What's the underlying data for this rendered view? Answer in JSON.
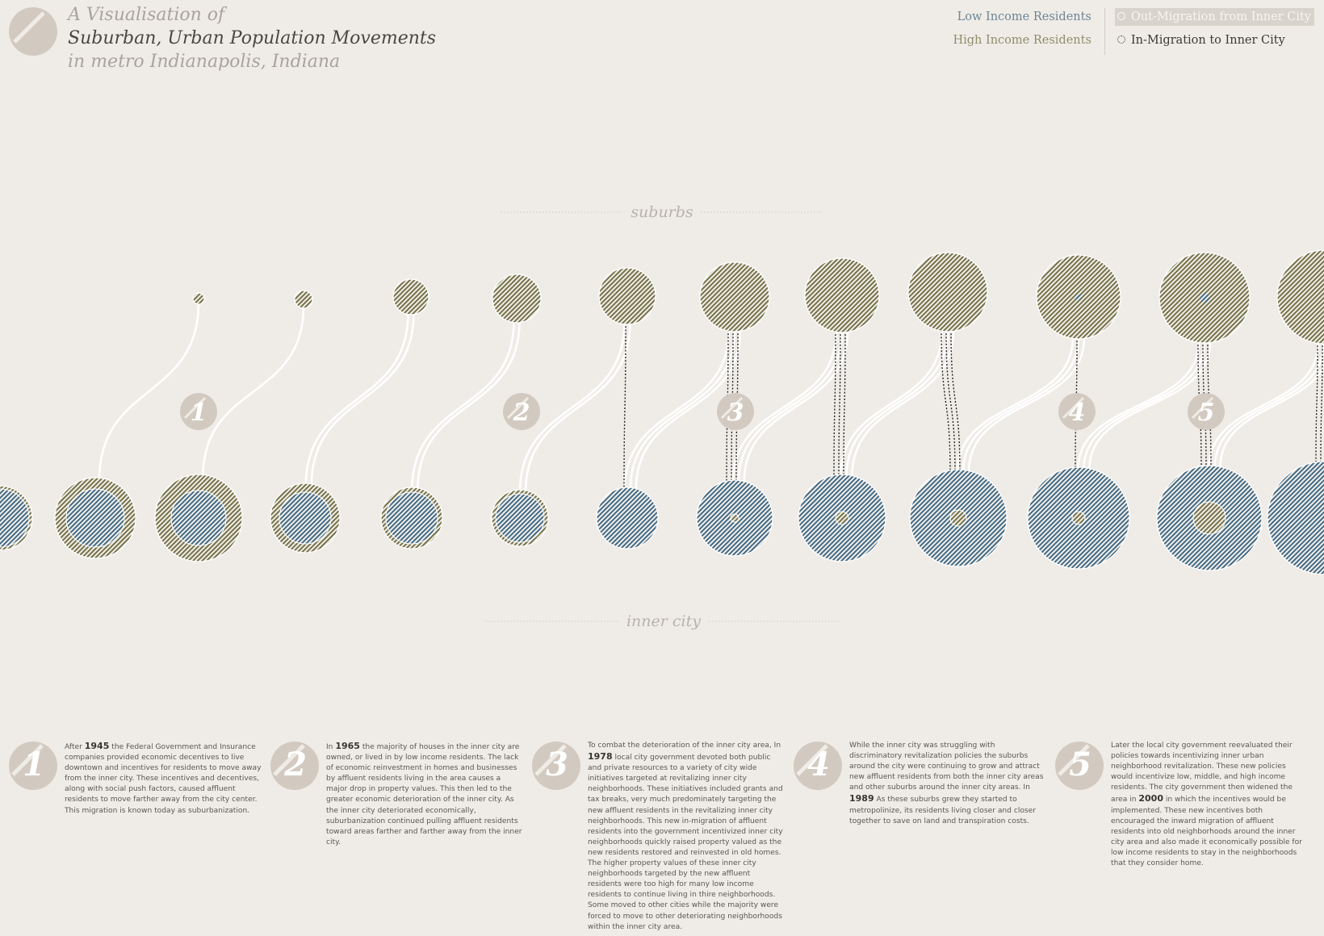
{
  "header": {
    "title_line1": "A Visualisation of",
    "title_line2": "Suburban, Urban Population Movements",
    "title_line3": "in metro Indianapolis, Indiana",
    "logo_icon": "circle-slash-logo"
  },
  "legend": {
    "low_income": "Low Income Residents",
    "high_income": "High Income Residents",
    "out_migration": "Out-Migration from Inner City",
    "in_migration": "In-Migration to Inner City",
    "low_income_color": "#4e6f86",
    "high_income_color": "#77744e",
    "out_migration_style": "solid-white",
    "in_migration_style": "dotted-black"
  },
  "diagram": {
    "top_label": "suburbs",
    "bottom_label": "inner city",
    "step_markers": [
      "1",
      "2",
      "3",
      "4",
      "5"
    ]
  },
  "steps": [
    {
      "number": "1",
      "pre": "After ",
      "year": "1945",
      "post": " the Federal Government and Insurance companies provided economic decentives to live downtown and incentives for residents to move away from the inner city. These incentives and decentives, along with social push factors, caused affluent residents to move farther away from the city center. This migration is known today as suburbanization."
    },
    {
      "number": "2",
      "pre": "In ",
      "year": "1965",
      "post": " the majority of houses in the inner city are owned, or lived in by low income residents. The lack of economic reinvestment in homes and businesses by affluent residents living in the area causes a major drop in property values. This then led to the greater economic deterioration of the inner city. As the inner city deteriorated economically, suburbanization continued pulling affluent residents toward areas farther and farther away from the inner city."
    },
    {
      "number": "3",
      "pre": "To combat the deterioration of the inner city area, In ",
      "year": "1978",
      "post": " local city government devoted both public and private resources to a variety of city wide initiatives targeted at revitalizing inner city neighborhoods. These initiatives included grants and tax breaks, very much predominately targeting the new affluent residents in the revitalizing inner city neighborhoods. This new in-migration of affluent residents into the government incentivized inner city neighborhoods quickly raised property valued as the new residents restored and reinvested in old homes. The higher property values of these inner city neighborhoods targeted by the new affluent residents were too high for many low income residents to continue living in thire neighborhoods. Some moved to other cities while the majority were forced to move to other deteriorating neighborhoods within the inner city area."
    },
    {
      "number": "4",
      "pre": "While the inner city was struggling with discriminatory revitalization policies the suburbs around the city were continuing to grow and attract new affluent residents from both the inner city areas and other suburbs around the inner city areas. In ",
      "year": "1989",
      "post": " As these suburbs grew they started to metropolinize, its residents living closer and closer together to save on land and transpiration costs."
    },
    {
      "number": "5",
      "pre": "Later the local city government reevaluated their policies towards incentivizing inner urban neighborhood revitalization. These new policies would incentivize low, middle, and high income residents. The city government then widened the area in ",
      "year": "2000",
      "post": " in which the incentives would be implemented. These new incentives both encouraged the inward migration of affluent residents into old neighborhoods around the inner city area and also made it economically possible for low income residents to stay in the neighborhoods that they consider home."
    }
  ]
}
